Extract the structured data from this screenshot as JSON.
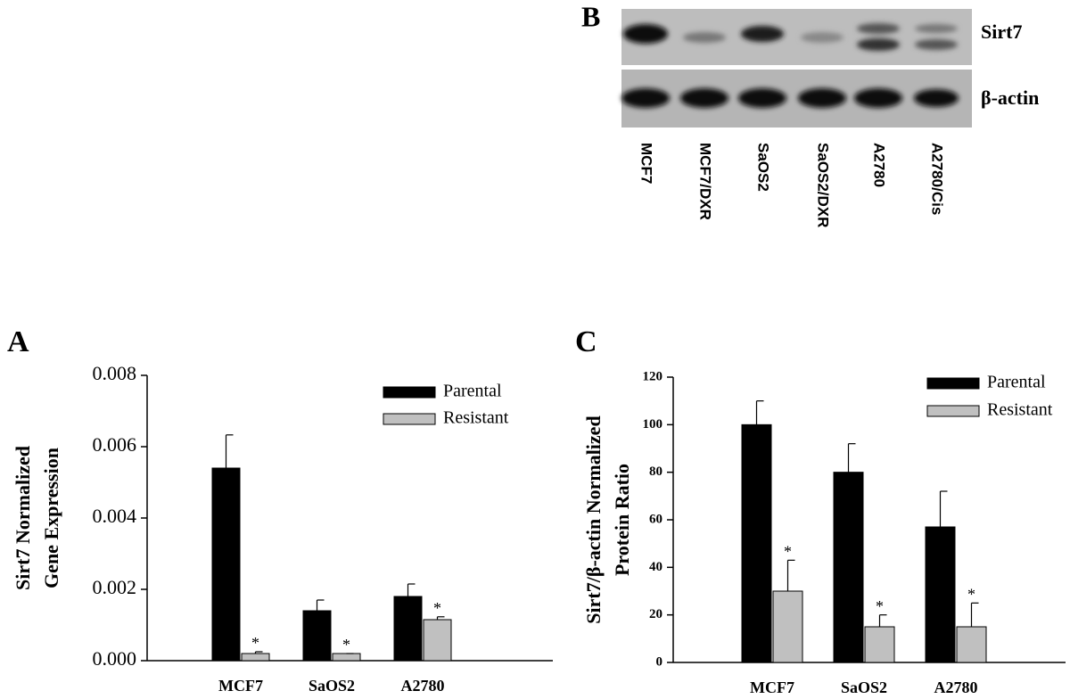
{
  "chart_data": [
    {
      "type": "bar",
      "panel": "A",
      "ylabel": [
        "Sirt7 Normalized",
        "Gene Expression"
      ],
      "categories": [
        "MCF7",
        "SaOS2",
        "A2780"
      ],
      "series": [
        {
          "name": "Parental",
          "color": "#000000",
          "values": [
            0.0054,
            0.0014,
            0.0018
          ],
          "errors": [
            0.00093,
            0.0003,
            0.00035
          ]
        },
        {
          "name": "Resistant",
          "color": "#c0c0c0",
          "values": [
            0.0002,
            0.0002,
            0.00115
          ],
          "errors": [
            5e-05,
            0,
            8e-05
          ],
          "markers": [
            "*",
            "*",
            "*"
          ]
        }
      ],
      "ylim": [
        0,
        0.008
      ],
      "yticks": [
        {
          "value": 0,
          "label": "0.000"
        },
        0.002,
        0.004,
        0.006,
        0.008
      ],
      "legend": "top-right"
    },
    {
      "type": "bar",
      "panel": "C",
      "ylabel": [
        "Sirt7/β-actin Normalized",
        "Protein Ratio"
      ],
      "categories": [
        "MCF7",
        "SaOS2",
        "A2780"
      ],
      "series": [
        {
          "name": "Parental",
          "color": "#000000",
          "values": [
            100,
            80,
            57
          ],
          "errors": [
            10,
            12,
            15
          ]
        },
        {
          "name": "Resistant",
          "color": "#c0c0c0",
          "values": [
            30,
            15,
            15
          ],
          "errors": [
            13,
            5,
            10
          ],
          "markers": [
            "*",
            "*",
            "*"
          ]
        }
      ],
      "ylim": [
        0,
        120
      ],
      "yticks": [
        0,
        20,
        40,
        60,
        80,
        100,
        120
      ],
      "legend": "top-right"
    }
  ],
  "blot": {
    "panel": "B",
    "bands": [
      "Sirt7",
      "β-actin"
    ],
    "lanes": [
      "MCF7",
      "MCF7/DXR",
      "SaOS2",
      "SaOS2/DXR",
      "A2780",
      "A2780/Cis"
    ]
  }
}
